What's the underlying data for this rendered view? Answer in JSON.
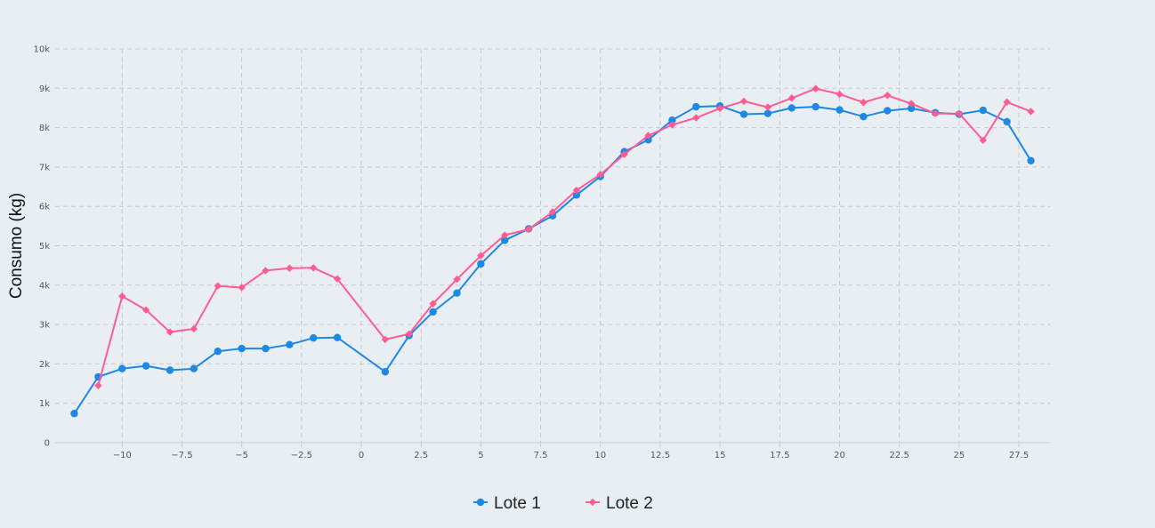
{
  "chart_data": {
    "type": "line",
    "title": "",
    "xlabel": "",
    "ylabel": "Consumo (kg)",
    "xlim": [
      -12.8,
      28.8
    ],
    "ylim": [
      0,
      10000
    ],
    "x_ticks": [
      -10,
      -7.5,
      -5,
      -2.5,
      0,
      2.5,
      5,
      7.5,
      10,
      12.5,
      15,
      17.5,
      20,
      22.5,
      25,
      27.5
    ],
    "x_tick_labels": [
      "−10",
      "−7.5",
      "−5",
      "−2.5",
      "0",
      "2.5",
      "5",
      "7.5",
      "10",
      "12.5",
      "15",
      "17.5",
      "20",
      "22.5",
      "25",
      "27.5"
    ],
    "y_ticks": [
      0,
      1000,
      2000,
      3000,
      4000,
      5000,
      6000,
      7000,
      8000,
      9000,
      10000
    ],
    "y_tick_labels": [
      "0",
      "1k",
      "2k",
      "3k",
      "4k",
      "5k",
      "6k",
      "7k",
      "8k",
      "9k",
      "10k"
    ],
    "grid": true,
    "legend": "bottom-center",
    "series": [
      {
        "name": "Lote 1",
        "color": "#1e88e5",
        "marker": "circle",
        "x": [
          -12,
          -11,
          -10,
          -9,
          -8,
          -7,
          -6,
          -5,
          -4,
          -3,
          -2,
          -1,
          1,
          2,
          3,
          4,
          5,
          6,
          7,
          8,
          9,
          10,
          11,
          12,
          13,
          14,
          15,
          16,
          17,
          18,
          19,
          20,
          21,
          22,
          23,
          24,
          25,
          26,
          27,
          28
        ],
        "y": [
          740,
          1670,
          1880,
          1950,
          1840,
          1880,
          2320,
          2390,
          2390,
          2490,
          2660,
          2670,
          1800,
          2720,
          3320,
          3800,
          4540,
          5140,
          5430,
          5760,
          6290,
          6760,
          7390,
          7690,
          8190,
          8530,
          8550,
          8340,
          8360,
          8500,
          8530,
          8450,
          8280,
          8430,
          8490,
          8380,
          8340,
          8440,
          8150,
          7160
        ]
      },
      {
        "name": "Lote 2",
        "color": "#ff5c93",
        "marker": "diamond",
        "x": [
          -11,
          -10,
          -9,
          -8,
          -7,
          -6,
          -5,
          -4,
          -3,
          -2,
          -1,
          1,
          2,
          3,
          4,
          5,
          6,
          7,
          8,
          9,
          10,
          11,
          12,
          13,
          14,
          15,
          16,
          17,
          18,
          19,
          20,
          21,
          22,
          23,
          24,
          25,
          26,
          27,
          28
        ],
        "y": [
          1450,
          3720,
          3370,
          2810,
          2890,
          3980,
          3940,
          4370,
          4430,
          4440,
          4160,
          2620,
          2760,
          3530,
          4150,
          4750,
          5270,
          5420,
          5860,
          6410,
          6810,
          7320,
          7800,
          8070,
          8250,
          8490,
          8670,
          8520,
          8750,
          8990,
          8850,
          8640,
          8820,
          8610,
          8360,
          8360,
          7680,
          8650,
          8410
        ]
      }
    ]
  }
}
